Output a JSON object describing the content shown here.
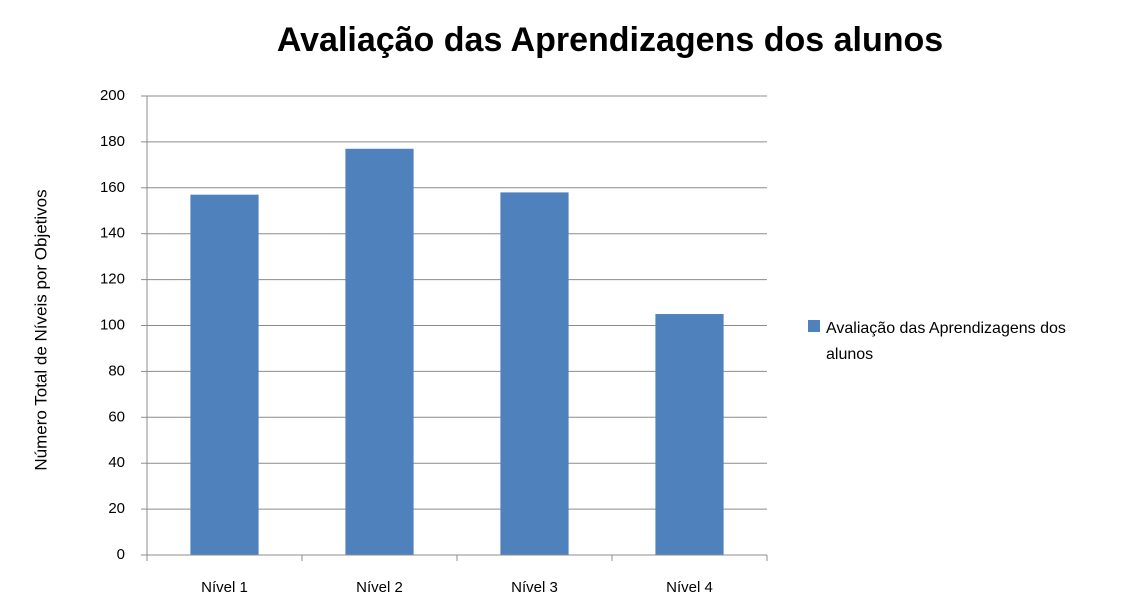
{
  "chart_data": {
    "type": "bar",
    "title": "Avaliação das Aprendizagens dos alunos",
    "ylabel": "Número Total de Níveis por Objetivos",
    "categories": [
      "Nível 1",
      "Nível 2",
      "Nível 3",
      "Nível 4"
    ],
    "series": [
      {
        "name": "Avaliação das Aprendizagens dos alunos",
        "color": "#4f81bd",
        "values": [
          157,
          177,
          158,
          105
        ]
      }
    ],
    "ylim": [
      0,
      200
    ],
    "yticks": [
      0,
      20,
      40,
      60,
      80,
      100,
      120,
      140,
      160,
      180,
      200
    ],
    "grid": true,
    "legend": "right"
  }
}
